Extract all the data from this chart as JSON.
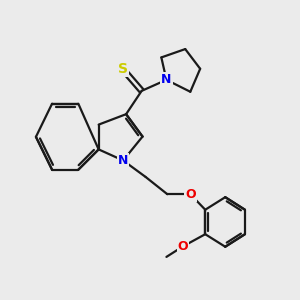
{
  "background_color": "#ebebeb",
  "bond_color": "#1a1a1a",
  "N_color": "#0000ee",
  "S_color": "#cccc00",
  "O_color": "#ee0000",
  "line_width": 1.6,
  "figsize": [
    3.0,
    3.0
  ],
  "dpi": 100,
  "xlim": [
    0,
    10
  ],
  "ylim": [
    0,
    10
  ]
}
